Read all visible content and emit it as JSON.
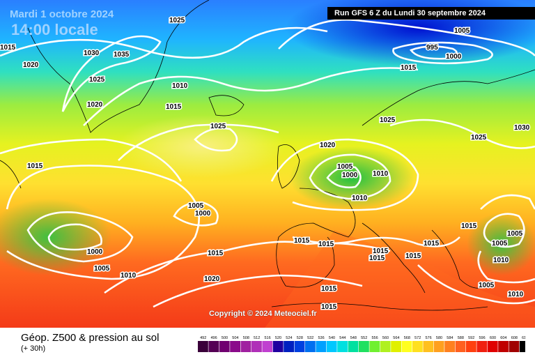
{
  "header": {
    "date": "Mardi 1 octobre 2024",
    "time": "14:00 locale",
    "run": "Run GFS 6 Z du Lundi 30 septembre 2024"
  },
  "copyright": "Copyright © 2024 Meteociel.fr",
  "footer": {
    "title": "Géop. Z500 & pression au sol",
    "lead": "(+ 30h)"
  },
  "legend_ticks": [
    "492",
    "496",
    "500",
    "504",
    "508",
    "512",
    "516",
    "520",
    "524",
    "528",
    "532",
    "536",
    "540",
    "544",
    "548",
    "552",
    "556",
    "560",
    "564",
    "568",
    "572",
    "576",
    "580",
    "584",
    "588",
    "592",
    "596",
    "600",
    "604",
    "608",
    "612"
  ],
  "legend_colors": [
    "#3a003a",
    "#550055",
    "#700070",
    "#8a0a8a",
    "#a020a0",
    "#b030b8",
    "#c040d0",
    "#2000a0",
    "#0020c0",
    "#0040e0",
    "#0070f0",
    "#00a0ff",
    "#00c8ff",
    "#00e0e0",
    "#00e0a0",
    "#20e060",
    "#70f030",
    "#b0f020",
    "#e0f000",
    "#ffff20",
    "#ffe020",
    "#ffc020",
    "#ffa020",
    "#ff8020",
    "#ff6020",
    "#ff4010",
    "#f02010",
    "#e00000",
    "#c00000",
    "#a00000",
    "#000000"
  ],
  "isobar_labels": [
    "1025",
    "1030",
    "1035",
    "1015",
    "1020",
    "1025",
    "1010",
    "1020",
    "1015",
    "1025",
    "1005",
    "995",
    "1000",
    "1015",
    "1025",
    "1030",
    "1025",
    "1020",
    "1005",
    "1000",
    "1010",
    "1005",
    "1000",
    "1000",
    "1005",
    "1010",
    "1015",
    "1015",
    "1015",
    "1015",
    "1015",
    "1015",
    "1015",
    "1015",
    "1020",
    "1010",
    "1005",
    "1005",
    "1005",
    "1010",
    "1015",
    "1015",
    "1015",
    "1010"
  ]
}
